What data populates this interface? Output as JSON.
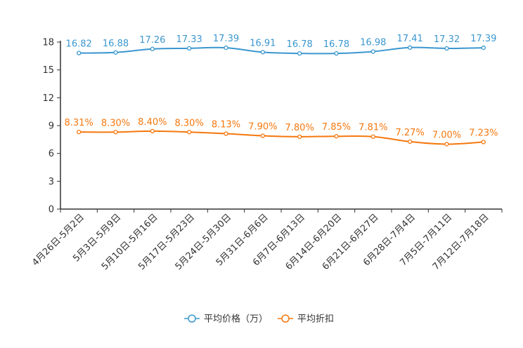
{
  "chart_data": {
    "type": "line",
    "title": "",
    "categories": [
      "4月26日-5月2日",
      "5月3日-5月9日",
      "5月10日-5月16日",
      "5月17日-5月23日",
      "5月24日-5月30日",
      "5月31日-6月6日",
      "6月7日-6月13日",
      "6月14日-6月20日",
      "6月21日-6月27日",
      "6月28日-7月4日",
      "7月5日-7月11日",
      "7月12日-7月18日"
    ],
    "ylim": [
      0,
      18
    ],
    "yticks": [
      0,
      3,
      6,
      9,
      12,
      15,
      18
    ],
    "legend_position": "bottom",
    "series": [
      {
        "name": "平均价格（万）",
        "color": "#3a97cf",
        "values": [
          16.82,
          16.88,
          17.26,
          17.33,
          17.39,
          16.91,
          16.78,
          16.78,
          16.98,
          17.41,
          17.32,
          17.39
        ],
        "labels": [
          "16.82",
          "16.88",
          "17.26",
          "17.33",
          "17.39",
          "16.91",
          "16.78",
          "16.78",
          "16.98",
          "17.41",
          "17.32",
          "17.39"
        ]
      },
      {
        "name": "平均折扣",
        "color": "#f5780f",
        "values": [
          8.31,
          8.3,
          8.4,
          8.3,
          8.13,
          7.9,
          7.8,
          7.85,
          7.81,
          7.27,
          7.0,
          7.23
        ],
        "labels": [
          "8.31%",
          "8.30%",
          "8.40%",
          "8.30%",
          "8.13%",
          "7.90%",
          "7.80%",
          "7.85%",
          "7.81%",
          "7.27%",
          "7.00%",
          "7.23%"
        ]
      }
    ]
  }
}
